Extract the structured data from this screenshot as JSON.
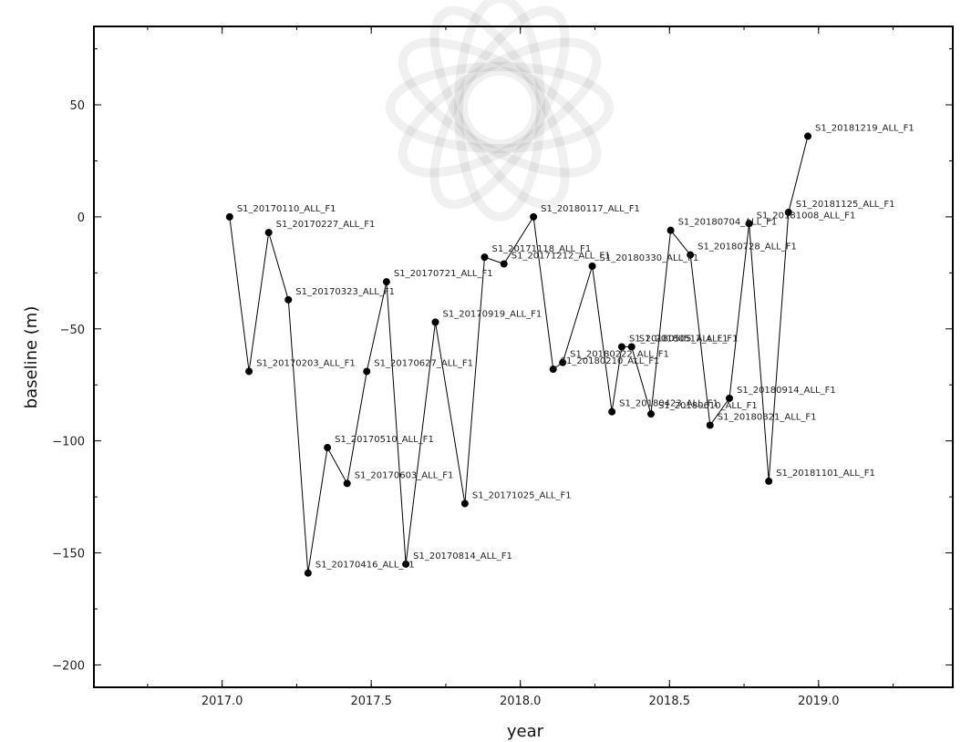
{
  "chart_data": {
    "type": "scatter",
    "xlabel": "year",
    "ylabel": "baseline (m)",
    "xlim": [
      2016.57,
      2019.45
    ],
    "ylim": [
      -210,
      85
    ],
    "xticks": [
      2017.0,
      2017.5,
      2018.0,
      2018.5,
      2019.0
    ],
    "xtick_labels": [
      "2017.0",
      "2017.5",
      "2018.0",
      "2018.5",
      "2019.0"
    ],
    "yticks": [
      50,
      0,
      -50,
      -100,
      -150,
      -200
    ],
    "ytick_labels": [
      "50",
      "0",
      "−50",
      "−100",
      "−150",
      "−200"
    ],
    "grid": false,
    "connected": true,
    "points": [
      {
        "label": "S1_20170110_ALL_F1",
        "x": 2017.025,
        "y": 0
      },
      {
        "label": "S1_20170203_ALL_F1",
        "x": 2017.09,
        "y": -69
      },
      {
        "label": "S1_20170227_ALL_F1",
        "x": 2017.156,
        "y": -7
      },
      {
        "label": "S1_20170323_ALL_F1",
        "x": 2017.222,
        "y": -37
      },
      {
        "label": "S1_20170416_ALL_F1",
        "x": 2017.288,
        "y": -159
      },
      {
        "label": "S1_20170510_ALL_F1",
        "x": 2017.353,
        "y": -103
      },
      {
        "label": "S1_20170603_ALL_F1",
        "x": 2017.419,
        "y": -119
      },
      {
        "label": "S1_20170627_ALL_F1",
        "x": 2017.485,
        "y": -69
      },
      {
        "label": "S1_20170721_ALL_F1",
        "x": 2017.551,
        "y": -29
      },
      {
        "label": "S1_20170814_ALL_F1",
        "x": 2017.616,
        "y": -155
      },
      {
        "label": "S1_20170919_ALL_F1",
        "x": 2017.715,
        "y": -47
      },
      {
        "label": "S1_20171025_ALL_F1",
        "x": 2017.814,
        "y": -128
      },
      {
        "label": "S1_20171118_ALL_F1",
        "x": 2017.88,
        "y": -18
      },
      {
        "label": "S1_20171212_ALL_F1",
        "x": 2017.945,
        "y": -21
      },
      {
        "label": "S1_20180117_ALL_F1",
        "x": 2018.044,
        "y": 0
      },
      {
        "label": "S1_20180210_ALL_F1",
        "x": 2018.11,
        "y": -68
      },
      {
        "label": "S1_20180222_ALL_F1",
        "x": 2018.142,
        "y": -65
      },
      {
        "label": "S1_20180330_ALL_F1",
        "x": 2018.241,
        "y": -22
      },
      {
        "label": "S1_20180423_ALL_F1",
        "x": 2018.307,
        "y": -87
      },
      {
        "label": "S1_20180505_ALL_F1",
        "x": 2018.34,
        "y": -58
      },
      {
        "label": "S1_20180517_ALL_F1",
        "x": 2018.373,
        "y": -58
      },
      {
        "label": "S1_20180610_ALL_F1",
        "x": 2018.438,
        "y": -88
      },
      {
        "label": "S1_20180704_ALL_F1",
        "x": 2018.504,
        "y": -6
      },
      {
        "label": "S1_20180728_ALL_F1",
        "x": 2018.57,
        "y": -17
      },
      {
        "label": "S1_20180821_ALL_F1",
        "x": 2018.636,
        "y": -93
      },
      {
        "label": "S1_20180914_ALL_F1",
        "x": 2018.701,
        "y": -81
      },
      {
        "label": "S1_20181008_ALL_F1",
        "x": 2018.767,
        "y": -3
      },
      {
        "label": "S1_20181101_ALL_F1",
        "x": 2018.833,
        "y": -118
      },
      {
        "label": "S1_20181125_ALL_F1",
        "x": 2018.899,
        "y": 2
      },
      {
        "label": "S1_20181219_ALL_F1",
        "x": 2018.964,
        "y": 36
      }
    ]
  }
}
